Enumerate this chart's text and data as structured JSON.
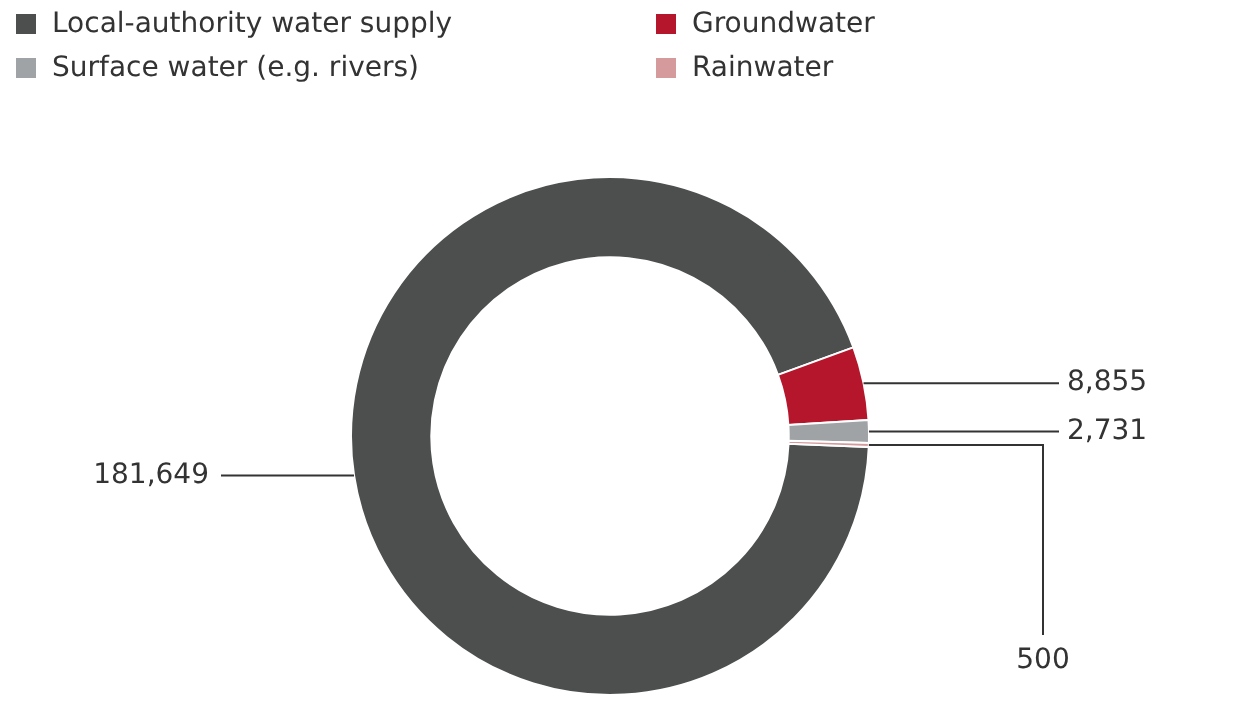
{
  "chart_data": {
    "type": "donut",
    "categories": [
      "Local-authority water supply",
      "Groundwater",
      "Surface water (e.g. rivers)",
      "Rainwater"
    ],
    "values": [
      181649,
      8855,
      2731,
      500
    ],
    "colors": [
      "#4d4f4f",
      "#b5162b",
      "#a0a3a5",
      "#d49a9c"
    ],
    "value_labels": [
      "181,649",
      "8,855",
      "2,731",
      "500"
    ],
    "legend": "top left"
  }
}
